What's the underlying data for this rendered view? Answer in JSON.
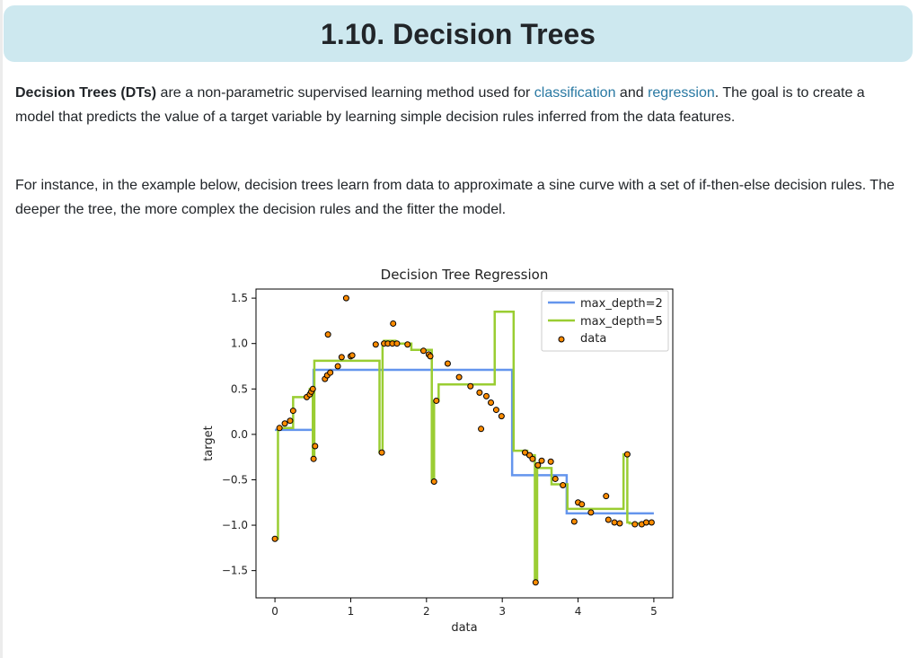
{
  "section": {
    "title": "1.10. Decision Trees"
  },
  "paragraph1": {
    "term": "Decision Trees (DTs)",
    "text_a": " are a non-parametric supervised learning method used for ",
    "link_classification": "classification",
    "text_b": " and ",
    "link_regression": "regression",
    "text_c": ". The goal is to create a model that predicts the value of a target variable by learning simple decision rules inferred from the data features."
  },
  "paragraph2": {
    "text": "For instance, in the example below, decision trees learn from data to approximate a sine curve with a set of if-then-else decision rules. The deeper the tree, the more complex the decision rules and the fitter the model."
  },
  "colors": {
    "depth2": "#6495ed",
    "depth5": "#9acd32",
    "data_fill": "#ff8c00",
    "data_edge": "#000000",
    "title_bar": "#cde8ef",
    "link": "#2878a2"
  },
  "chart_data": {
    "type": "line",
    "title": "Decision Tree Regression",
    "xlabel": "data",
    "ylabel": "target",
    "xlim": [
      -0.25,
      5.25
    ],
    "ylim": [
      -1.8,
      1.6
    ],
    "x_ticks": [
      0,
      1,
      2,
      3,
      4,
      5
    ],
    "x_tick_labels": [
      "0",
      "1",
      "2",
      "3",
      "4",
      "5"
    ],
    "y_ticks": [
      1.5,
      1.0,
      0.5,
      0.0,
      -0.5,
      -1.0,
      -1.5
    ],
    "y_tick_labels": [
      "1.5",
      "1.0",
      "0.5",
      "0.0",
      "−0.5",
      "−1.0",
      "−1.5"
    ],
    "grid": false,
    "legend": {
      "position": "top-right",
      "entries": [
        "max_depth=2",
        "max_depth=5",
        "data"
      ]
    },
    "scatter": {
      "name": "data",
      "x": [
        0.0,
        0.06,
        0.13,
        0.2,
        0.24,
        0.42,
        0.46,
        0.48,
        0.5,
        0.51,
        0.53,
        0.7,
        0.66,
        0.69,
        0.73,
        0.83,
        0.88,
        0.94,
        1.0,
        1.02,
        1.33,
        1.41,
        1.44,
        1.49,
        1.55,
        1.56,
        1.61,
        1.75,
        1.96,
        2.03,
        2.05,
        2.1,
        2.13,
        2.28,
        2.43,
        2.58,
        2.7,
        2.72,
        2.79,
        2.85,
        2.92,
        2.99,
        3.3,
        3.36,
        3.4,
        3.44,
        3.47,
        3.52,
        3.64,
        3.7,
        3.8,
        3.95,
        4.0,
        4.05,
        4.17,
        4.37,
        4.4,
        4.48,
        4.55,
        4.65,
        4.75,
        4.84,
        4.9,
        4.97
      ],
      "y": [
        -1.15,
        0.07,
        0.12,
        0.15,
        0.26,
        0.41,
        0.44,
        0.47,
        0.5,
        -0.27,
        -0.13,
        1.1,
        0.61,
        0.65,
        0.68,
        0.75,
        0.85,
        1.5,
        0.86,
        0.87,
        0.99,
        -0.2,
        1.0,
        1.0,
        1.0,
        1.22,
        1.0,
        0.99,
        0.92,
        0.88,
        0.86,
        -0.52,
        0.37,
        0.78,
        0.63,
        0.53,
        0.46,
        0.06,
        0.42,
        0.35,
        0.27,
        0.2,
        -0.2,
        -0.23,
        -0.27,
        -1.63,
        -0.34,
        -0.29,
        -0.3,
        -0.49,
        -0.56,
        -0.96,
        -0.75,
        -0.77,
        -0.86,
        -0.68,
        -0.94,
        -0.97,
        -0.98,
        -0.22,
        -0.99,
        -0.99,
        -0.97,
        -0.97
      ]
    },
    "series": [
      {
        "name": "max_depth=2",
        "step_x": [
          0.0,
          0.51,
          3.13,
          3.85,
          5.0
        ],
        "step_y": [
          0.05,
          0.71,
          -0.45,
          -0.87
        ]
      },
      {
        "name": "max_depth=5",
        "step_x": [
          0.0,
          0.04,
          0.24,
          0.45,
          0.46,
          0.5,
          0.52,
          1.38,
          1.42,
          1.44,
          1.59,
          1.8,
          2.07,
          2.1,
          2.16,
          2.9,
          2.95,
          3.15,
          3.33,
          3.43,
          3.46,
          3.65,
          3.86,
          4.6,
          4.65,
          4.68,
          5.0
        ],
        "step_y": [
          -1.15,
          0.07,
          0.41,
          0.47,
          0.5,
          -0.27,
          0.81,
          -0.2,
          0.99,
          1.03,
          1.0,
          0.93,
          -0.52,
          0.37,
          0.55,
          1.35,
          1.35,
          -0.18,
          -0.23,
          -1.63,
          -0.37,
          -0.55,
          -0.82,
          -0.22,
          -0.97,
          -0.98
        ]
      }
    ]
  }
}
